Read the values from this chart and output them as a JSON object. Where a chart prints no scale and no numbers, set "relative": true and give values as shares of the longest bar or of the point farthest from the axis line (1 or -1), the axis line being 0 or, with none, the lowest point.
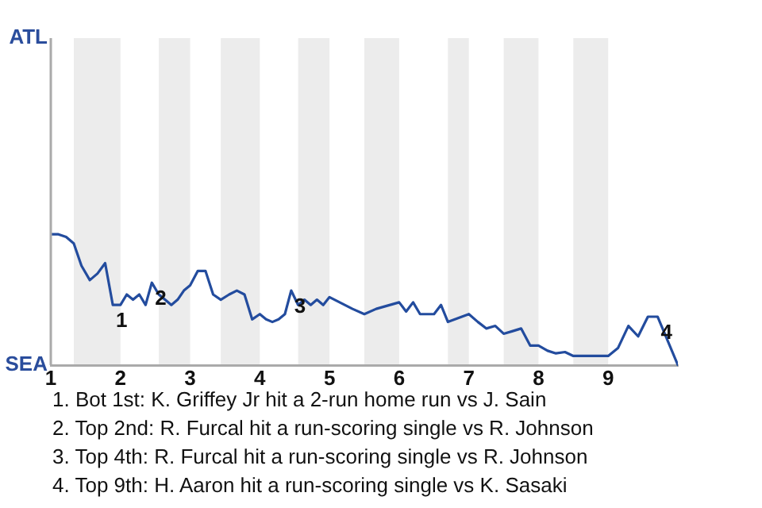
{
  "chart_data": {
    "type": "line",
    "relative": true,
    "x": [
      1,
      1.11,
      1.22,
      1.33,
      1.44,
      1.56,
      1.67,
      1.78,
      1.89,
      2,
      2.09,
      2.18,
      2.27,
      2.36,
      2.45,
      2.55,
      2.64,
      2.73,
      2.82,
      2.91,
      3,
      3.11,
      3.22,
      3.33,
      3.44,
      3.56,
      3.67,
      3.78,
      3.89,
      4,
      4.09,
      4.18,
      4.27,
      4.36,
      4.45,
      4.55,
      4.64,
      4.73,
      4.82,
      4.91,
      5,
      5.33,
      5.5,
      5.67,
      6,
      6.1,
      6.2,
      6.3,
      6.5,
      6.6,
      6.7,
      7,
      7.13,
      7.25,
      7.38,
      7.5,
      7.63,
      7.75,
      7.88,
      8,
      8.13,
      8.25,
      8.38,
      8.5,
      9,
      9.14,
      9.29,
      9.43,
      9.57,
      9.71,
      10
    ],
    "series": [
      {
        "color": "#234c9e",
        "values": [
          1,
          1,
          0.98,
          0.93,
          0.76,
          0.65,
          0.7,
          0.78,
          0.46,
          0.46,
          0.54,
          0.5,
          0.54,
          0.46,
          0.63,
          0.54,
          0.5,
          0.46,
          0.5,
          0.57,
          0.61,
          0.72,
          0.72,
          0.54,
          0.5,
          0.54,
          0.57,
          0.54,
          0.35,
          0.39,
          0.35,
          0.33,
          0.35,
          0.39,
          0.57,
          0.46,
          0.5,
          0.46,
          0.5,
          0.46,
          0.52,
          0.43,
          0.39,
          0.43,
          0.48,
          0.41,
          0.48,
          0.39,
          0.39,
          0.46,
          0.33,
          0.39,
          0.33,
          0.28,
          0.3,
          0.24,
          0.26,
          0.28,
          0.15,
          0.15,
          0.11,
          0.09,
          0.1,
          0.07,
          0.07,
          0.13,
          0.3,
          0.22,
          0.37,
          0.37,
          0
        ]
      }
    ],
    "xlim": [
      1,
      10
    ],
    "xticks": [
      1,
      2,
      3,
      4,
      5,
      6,
      7,
      8,
      9
    ],
    "marker": "none",
    "bands": [
      {
        "axis": "x",
        "from": 1.33,
        "to": 2,
        "color": "#ececec"
      },
      {
        "axis": "x",
        "from": 2.55,
        "to": 3,
        "color": "#ececec"
      },
      {
        "axis": "x",
        "from": 3.44,
        "to": 4,
        "color": "#ececec"
      },
      {
        "axis": "x",
        "from": 4.55,
        "to": 5,
        "color": "#ececec"
      },
      {
        "axis": "x",
        "from": 5.5,
        "to": 6,
        "color": "#ececec"
      },
      {
        "axis": "x",
        "from": 6.7,
        "to": 7,
        "color": "#ececec"
      },
      {
        "axis": "x",
        "from": 7.5,
        "to": 8,
        "color": "#ececec"
      },
      {
        "axis": "x",
        "from": 8.5,
        "to": 9,
        "color": "#ececec"
      }
    ],
    "annotations": [
      {
        "text": "1",
        "x": 1.89,
        "y": 0.46
      },
      {
        "text": "2",
        "x": 2.45,
        "y": 0.63
      },
      {
        "text": "3",
        "x": 4.45,
        "y": 0.57
      },
      {
        "text": "4",
        "x": 9.71,
        "y": 0.37
      },
      "ATL",
      "SEA",
      "1. Bot 1st: K. Griffey Jr hit a 2-run home run vs J. Sain",
      "2. Top 2nd: R. Furcal hit a run-scoring single vs R. Johnson",
      "3. Top 4th: R. Furcal hit a run-scoring single vs R. Johnson",
      "4. Top 9th: H. Aaron hit a run-scoring single vs K. Sasaki"
    ]
  }
}
